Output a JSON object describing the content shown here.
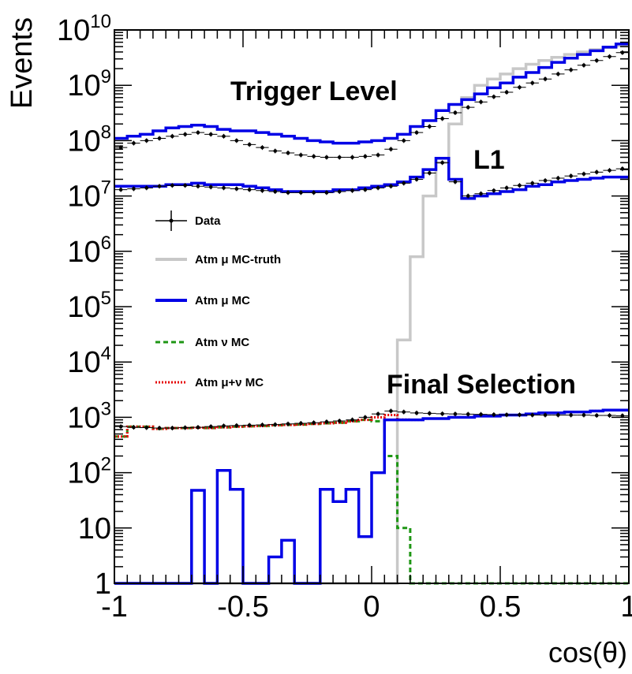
{
  "chart_data": {
    "type": "line",
    "ylabel": "Events",
    "xlabel": "cos(θ)",
    "yscale": "log",
    "xlim": [
      -1,
      1
    ],
    "ylim": [
      1,
      10000000000
    ],
    "grid": false,
    "legend_position": "middle-left",
    "x_tick_labels": [
      "-1",
      "-0.5",
      "0",
      "0.5",
      "1"
    ],
    "y_tick_labels": [
      {
        "base": "1",
        "exp": ""
      },
      {
        "base": "10",
        "exp": ""
      },
      {
        "base": "10",
        "exp": "2"
      },
      {
        "base": "10",
        "exp": "3"
      },
      {
        "base": "10",
        "exp": "4"
      },
      {
        "base": "10",
        "exp": "5"
      },
      {
        "base": "10",
        "exp": "6"
      },
      {
        "base": "10",
        "exp": "7"
      },
      {
        "base": "10",
        "exp": "8"
      },
      {
        "base": "10",
        "exp": "9"
      },
      {
        "base": "10",
        "exp": "10"
      }
    ],
    "annotations": [
      {
        "text": "Trigger Level",
        "x": -0.1,
        "y": 250000000
      },
      {
        "text": "L1",
        "x": 0.46,
        "y": 21000000
      },
      {
        "text": "Final Selection",
        "x": 0.55,
        "y": 2700
      }
    ],
    "legend": [
      {
        "label": "Data",
        "style": "data"
      },
      {
        "label": "Atm μ MC-truth",
        "style": "line",
        "color": "#c8c8c8",
        "dash": ""
      },
      {
        "label": "Atm μ MC",
        "style": "line",
        "color": "#0000e6",
        "dash": ""
      },
      {
        "label": "Atm ν MC",
        "style": "line",
        "color": "#1e9614",
        "dash": "6,4"
      },
      {
        "label": "Atm μ+ν MC",
        "style": "line",
        "color": "#e60000",
        "dash": "2,2"
      }
    ],
    "bin_edges": [
      -1.0,
      -0.95,
      -0.9,
      -0.85,
      -0.8,
      -0.75,
      -0.7,
      -0.65,
      -0.6,
      -0.55,
      -0.5,
      -0.45,
      -0.4,
      -0.35,
      -0.3,
      -0.25,
      -0.2,
      -0.15,
      -0.1,
      -0.05,
      0.0,
      0.05,
      0.1,
      0.15,
      0.2,
      0.25,
      0.3,
      0.35,
      0.4,
      0.45,
      0.5,
      0.55,
      0.6,
      0.65,
      0.7,
      0.75,
      0.8,
      0.85,
      0.9,
      0.95,
      1.0
    ],
    "series": [
      {
        "name": "Atm μ MC-truth",
        "role": "histogram",
        "color": "#c8c8c8",
        "values": [
          1,
          1,
          1,
          1,
          1,
          1,
          1,
          1,
          1,
          1,
          1,
          1,
          1,
          1,
          1,
          1,
          1,
          1,
          1,
          1,
          1,
          1,
          25000,
          800000,
          10000000,
          40000000,
          200000000,
          600000000,
          1000000000,
          1300000000,
          1600000000,
          2000000000,
          2400000000,
          2800000000,
          3200000000,
          3600000000,
          4000000000,
          4400000000,
          4800000000,
          5200000000
        ]
      },
      {
        "name": "Atm μ MC (Trigger Level)",
        "role": "histogram",
        "color": "#0000e6",
        "values": [
          110000000,
          120000000,
          130000000,
          150000000,
          170000000,
          180000000,
          190000000,
          180000000,
          160000000,
          150000000,
          150000000,
          140000000,
          130000000,
          120000000,
          110000000,
          100000000,
          95000000,
          90000000,
          90000000,
          95000000,
          100000000,
          110000000,
          130000000,
          180000000,
          230000000,
          350000000,
          450000000,
          550000000,
          700000000,
          900000000,
          1100000000,
          1400000000,
          1700000000,
          2100000000,
          2600000000,
          3100000000,
          3600000000,
          4200000000,
          4900000000,
          5600000000
        ]
      },
      {
        "name": "Atm μ MC (L1)",
        "role": "histogram",
        "color": "#0000e6",
        "values": [
          15000000,
          15000000,
          15000000,
          15000000,
          16000000,
          16000000,
          17000000,
          16000000,
          16000000,
          16000000,
          15000000,
          14000000,
          13000000,
          12000000,
          12000000,
          12000000,
          12000000,
          13000000,
          13000000,
          14000000,
          15000000,
          16000000,
          18000000,
          22000000,
          30000000,
          48000000,
          20000000,
          9000000,
          10000000,
          11000000,
          12000000,
          13000000,
          15000000,
          16000000,
          18000000,
          19000000,
          20000000,
          21000000,
          22000000,
          22000000
        ]
      },
      {
        "name": "Atm μ MC (Final Selection)",
        "role": "histogram",
        "color": "#0000e6",
        "values": [
          1,
          1,
          1,
          1,
          1,
          1,
          48,
          1,
          110,
          50,
          1,
          1,
          3,
          6,
          1,
          1,
          50,
          30,
          50,
          7,
          100,
          900,
          900,
          900,
          950,
          950,
          1000,
          1000,
          1050,
          1050,
          1100,
          1100,
          1150,
          1200,
          1200,
          1250,
          1250,
          1300,
          1350,
          1350
        ]
      },
      {
        "name": "Atm ν MC",
        "role": "histogram",
        "color": "#1e9614",
        "values": [
          450,
          680,
          680,
          620,
          640,
          640,
          650,
          640,
          660,
          680,
          690,
          700,
          720,
          730,
          740,
          760,
          780,
          800,
          850,
          900,
          850,
          200,
          10,
          1,
          1,
          1,
          1,
          1,
          1,
          1,
          1,
          1,
          1,
          1,
          1,
          1,
          1,
          1,
          1,
          1
        ]
      },
      {
        "name": "Atm μ+ν MC",
        "role": "histogram",
        "color": "#e60000",
        "values": [
          450,
          680,
          680,
          620,
          640,
          640,
          650,
          640,
          660,
          680,
          690,
          700,
          720,
          730,
          740,
          760,
          780,
          800,
          850,
          900,
          1000,
          1100,
          910,
          900,
          950,
          950,
          1000,
          1000,
          1050,
          1050,
          1100,
          1100,
          1150,
          1200,
          1200,
          1250,
          1250,
          1300,
          1350,
          1350
        ]
      },
      {
        "name": "Data (Trigger Level)",
        "role": "points",
        "color": "#000000",
        "values": [
          75000000,
          90000000,
          100000000,
          110000000,
          120000000,
          130000000,
          140000000,
          130000000,
          120000000,
          100000000,
          85000000,
          75000000,
          65000000,
          60000000,
          55000000,
          52000000,
          50000000,
          50000000,
          50000000,
          52000000,
          55000000,
          70000000,
          100000000,
          140000000,
          180000000,
          250000000,
          320000000,
          400000000,
          500000000,
          620000000,
          750000000,
          920000000,
          1100000000,
          1300000000,
          1600000000,
          1900000000,
          2300000000,
          2800000000,
          3300000000,
          3900000000
        ]
      },
      {
        "name": "Data (L1)",
        "role": "points",
        "color": "#000000",
        "values": [
          13000000,
          13500000,
          14000000,
          15000000,
          15500000,
          15500000,
          15000000,
          14500000,
          14000000,
          13500000,
          13000000,
          12500000,
          12000000,
          11500000,
          11500000,
          11500000,
          11500000,
          12000000,
          12500000,
          13000000,
          14000000,
          15000000,
          17000000,
          20000000,
          26000000,
          40000000,
          18000000,
          10000000,
          11000000,
          12500000,
          14000000,
          15500000,
          17000000,
          19000000,
          21000000,
          23000000,
          25000000,
          27000000,
          29000000,
          31000000
        ]
      },
      {
        "name": "Data (Final Selection)",
        "role": "points",
        "color": "#000000",
        "values": [
          680,
          660,
          650,
          640,
          640,
          650,
          660,
          680,
          700,
          710,
          720,
          730,
          740,
          760,
          780,
          800,
          830,
          860,
          900,
          1000,
          1150,
          1300,
          1250,
          1200,
          1180,
          1160,
          1150,
          1140,
          1130,
          1120,
          1110,
          1110,
          1100,
          1100,
          1100,
          1100,
          1100,
          1080,
          1080,
          1070
        ]
      }
    ]
  }
}
